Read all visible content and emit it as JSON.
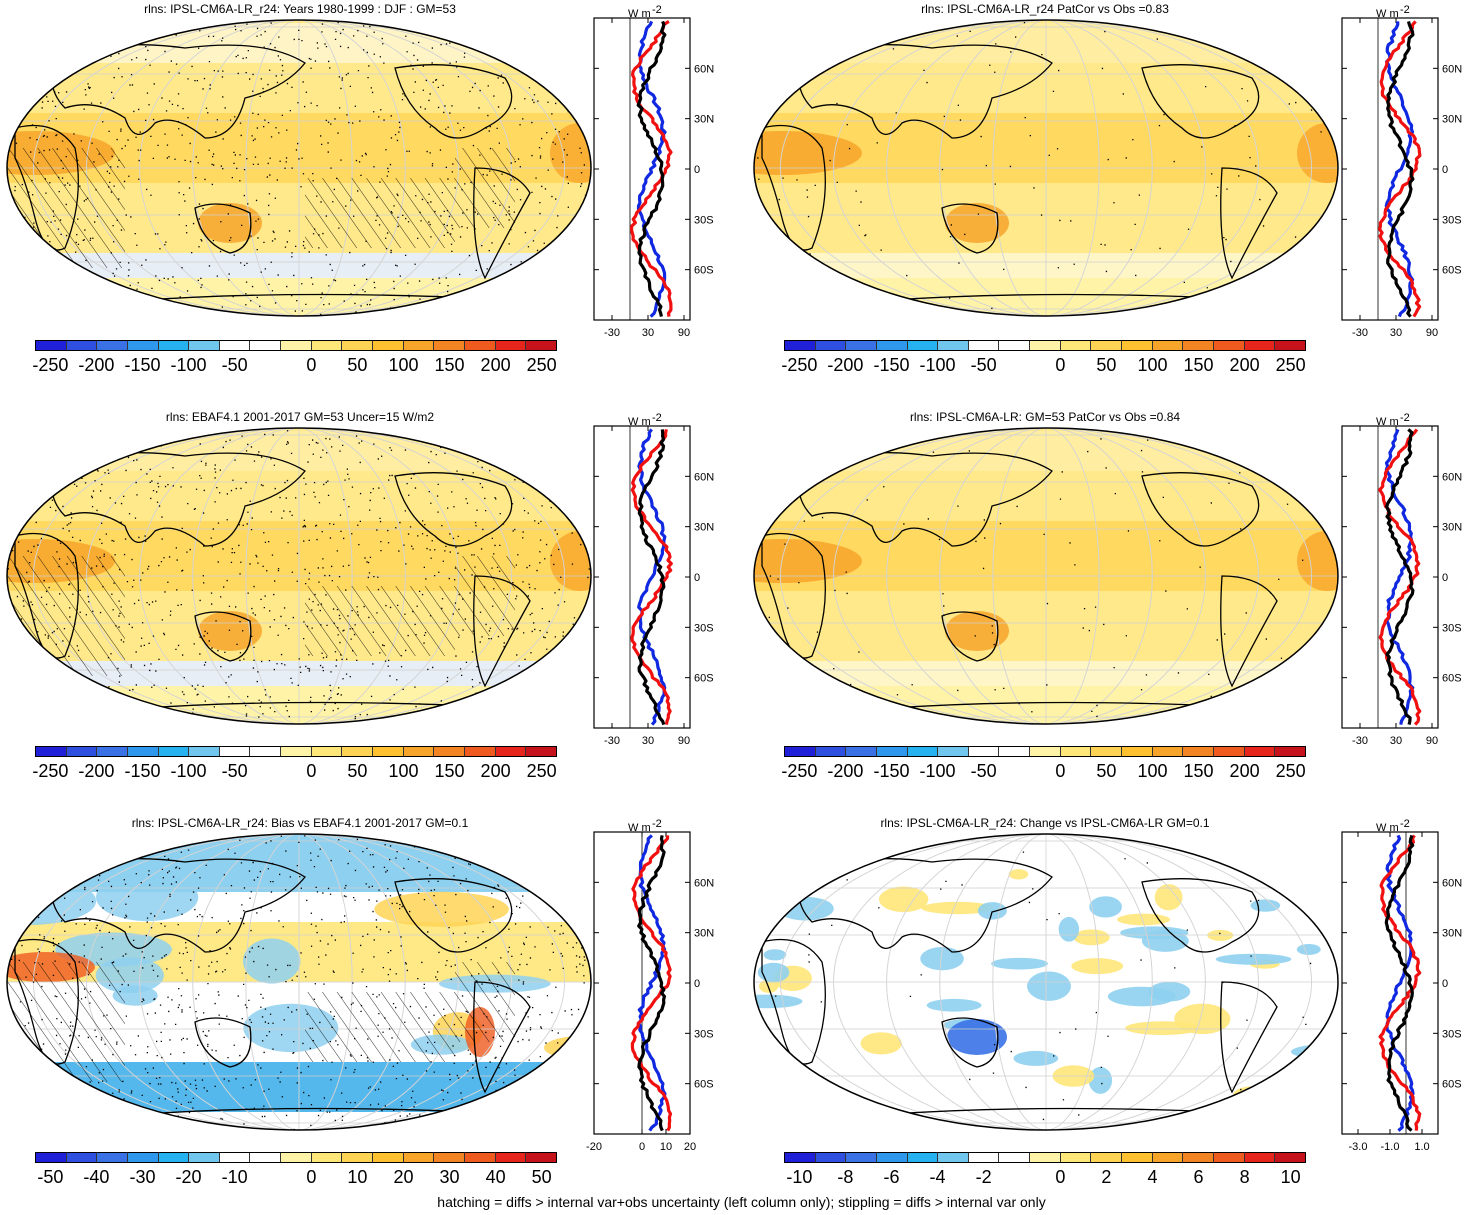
{
  "panels": [
    {
      "id": "p1",
      "title": "rlns: IPSL-CM6A-LR_r24: Years 1980-1999 : DJF : GM=53",
      "palette": "abs",
      "hatch": true,
      "cb_labels": [
        "-250",
        "-200",
        "-150",
        "-100",
        "-50",
        "0",
        "50",
        "100",
        "150",
        "200",
        "250"
      ],
      "profile_xticks": [
        "-30",
        "30",
        "90"
      ],
      "profile_xrange": [
        -60,
        100
      ],
      "profile_zero": 0
    },
    {
      "id": "p2",
      "title": "rlns: IPSL-CM6A-LR_r24 PatCor vs Obs =0.83",
      "palette": "abs",
      "hatch": false,
      "cb_labels": [
        "-250",
        "-200",
        "-150",
        "-100",
        "-50",
        "0",
        "50",
        "100",
        "150",
        "200",
        "250"
      ],
      "profile_xticks": [
        "-30",
        "30",
        "90"
      ],
      "profile_xrange": [
        -60,
        100
      ],
      "profile_zero": 0
    },
    {
      "id": "p3",
      "title": "rlns: EBAF4.1 2001-2017 GM=53 Uncer=15 W/m2",
      "palette": "abs",
      "hatch": true,
      "cb_labels": [
        "-250",
        "-200",
        "-150",
        "-100",
        "-50",
        "0",
        "50",
        "100",
        "150",
        "200",
        "250"
      ],
      "profile_xticks": [
        "-30",
        "30",
        "90"
      ],
      "profile_xrange": [
        -60,
        100
      ],
      "profile_zero": 0
    },
    {
      "id": "p4",
      "title": "rlns: IPSL-CM6A-LR: GM=53 PatCor vs Obs =0.84",
      "palette": "abs",
      "hatch": false,
      "cb_labels": [
        "-250",
        "-200",
        "-150",
        "-100",
        "-50",
        "0",
        "50",
        "100",
        "150",
        "200",
        "250"
      ],
      "profile_xticks": [
        "-30",
        "30",
        "90"
      ],
      "profile_xrange": [
        -60,
        100
      ],
      "profile_zero": 0
    },
    {
      "id": "p5",
      "title": "rlns: IPSL-CM6A-LR_r24: Bias vs EBAF4.1 2001-2017 GM=0.1",
      "palette": "bias",
      "hatch": true,
      "cb_labels": [
        "-50",
        "-40",
        "-30",
        "-20",
        "-10",
        "0",
        "10",
        "20",
        "30",
        "40",
        "50"
      ],
      "profile_xticks": [
        "-20",
        "0",
        "10",
        "20"
      ],
      "profile_xrange": [
        -20,
        20
      ],
      "profile_zero": 0
    },
    {
      "id": "p6",
      "title": "rlns: IPSL-CM6A-LR_r24: Change vs IPSL-CM6A-LR GM=0.1",
      "palette": "change",
      "hatch": false,
      "cb_labels": [
        "-10",
        "-8",
        "-6",
        "-4",
        "-2",
        "0",
        "2",
        "4",
        "6",
        "8",
        "10"
      ],
      "profile_xticks": [
        "-3.0",
        "-1.0",
        "1.0"
      ],
      "profile_xrange": [
        -4,
        2
      ],
      "profile_zero": 0
    }
  ],
  "profile": {
    "unit_label": "W m",
    "unit_sup": "-2",
    "lat_ticks": [
      "60N",
      "30N",
      "0",
      "30S",
      "60S"
    ]
  },
  "colors": {
    "abs_palette": [
      "#2020d8",
      "#2e4fe0",
      "#3a72e6",
      "#2f97ec",
      "#26b2f0",
      "#70c6ec",
      "#ffffff",
      "#ffffff",
      "#fff3a8",
      "#ffe77a",
      "#ffd455",
      "#ffc12f",
      "#f7a52a",
      "#f28423",
      "#ef5a1f",
      "#e6251c",
      "#c6121a"
    ],
    "series_colors": {
      "red": "#f01010",
      "blue": "#1028e0",
      "black": "#000000"
    }
  },
  "footer": "hatching = diffs > internal var+obs uncertainty (left column only); stippling = diffs > internal var only"
}
